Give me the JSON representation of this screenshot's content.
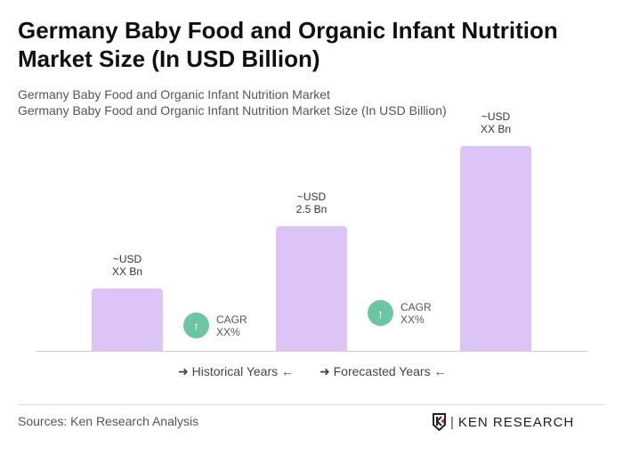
{
  "title": "Germany Baby Food and Organic Infant Nutrition Market Size (In USD Billion)",
  "subtitle1": "Germany Baby Food and Organic Infant Nutrition Market",
  "subtitle2": "Germany Baby Food and Organic Infant Nutrition Market Size (In USD Billion)",
  "chart_data": {
    "type": "bar",
    "categories": [
      "",
      "",
      ""
    ],
    "values": [
      1.25,
      2.5,
      4.1
    ],
    "data_labels": [
      [
        "~USD",
        "XX Bn"
      ],
      [
        "~USD",
        "2.5 Bn"
      ],
      [
        "~USD",
        "XX Bn"
      ]
    ],
    "color": "#dcc4f7",
    "cagr": [
      {
        "label": "CAGR",
        "value": "XX%"
      },
      {
        "label": "CAGR",
        "value": "XX%"
      }
    ],
    "legend": [
      "Historical Years",
      "Forecasted Years"
    ],
    "grid": false
  },
  "footer": {
    "source": "Sources: Ken Research Analysis",
    "logo": "KEN RESEARCH"
  },
  "colors": {
    "cagr_icon": "#6cc6a3",
    "logo_accent": "#e03a3a"
  }
}
